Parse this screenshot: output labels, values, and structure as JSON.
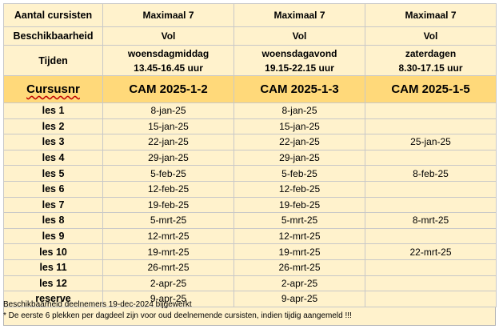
{
  "header_rows": [
    {
      "label": "Aantal cursisten",
      "values": [
        "Maximaal 7",
        "Maximaal 7",
        "Maximaal 7"
      ]
    },
    {
      "label": "Beschikbaarheid",
      "values": [
        "Vol",
        "Vol",
        "Vol"
      ]
    }
  ],
  "tijden": {
    "label": "Tijden",
    "values": [
      {
        "day": "woensdagmiddag",
        "time": "13.45-16.45 uur"
      },
      {
        "day": "woensdagavond",
        "time": "19.15-22.15 uur"
      },
      {
        "day": "zaterdagen",
        "time": "8.30-17.15 uur"
      }
    ]
  },
  "cursus": {
    "label": "Cursusnr",
    "codes": [
      "CAM 2025-1-2",
      "CAM 2025-1-3",
      "CAM 2025-1-5"
    ]
  },
  "lessons": [
    {
      "label": "les 1",
      "dates": [
        "8-jan-25",
        "8-jan-25",
        ""
      ]
    },
    {
      "label": "les 2",
      "dates": [
        "15-jan-25",
        "15-jan-25",
        ""
      ]
    },
    {
      "label": "les 3",
      "dates": [
        "22-jan-25",
        "22-jan-25",
        "25-jan-25"
      ]
    },
    {
      "label": "les 4",
      "dates": [
        "29-jan-25",
        "29-jan-25",
        ""
      ]
    },
    {
      "label": "les 5",
      "dates": [
        "5-feb-25",
        "5-feb-25",
        "8-feb-25"
      ]
    },
    {
      "label": "les 6",
      "dates": [
        "12-feb-25",
        "12-feb-25",
        ""
      ]
    },
    {
      "label": "les 7",
      "dates": [
        "19-feb-25",
        "19-feb-25",
        ""
      ]
    },
    {
      "label": "les 8",
      "dates": [
        "5-mrt-25",
        "5-mrt-25",
        "8-mrt-25"
      ]
    },
    {
      "label": "les 9",
      "dates": [
        "12-mrt-25",
        "12-mrt-25",
        ""
      ]
    },
    {
      "label": "les 10",
      "dates": [
        "19-mrt-25",
        "19-mrt-25",
        "22-mrt-25"
      ]
    },
    {
      "label": "les 11",
      "dates": [
        "26-mrt-25",
        "26-mrt-25",
        ""
      ]
    },
    {
      "label": "les 12",
      "dates": [
        "2-apr-25",
        "2-apr-25",
        ""
      ]
    },
    {
      "label": "reserve",
      "dates": [
        "9-apr-25",
        "9-apr-25",
        ""
      ]
    }
  ],
  "footer": {
    "line1": "Beschikbaarheid deelnemers 19-dec-2024 bijgewerkt",
    "line2": "*  De eerste 6 plekken per dagdeel zijn voor oud deelnemende cursisten, indien tijdig aangemeld !!!"
  }
}
